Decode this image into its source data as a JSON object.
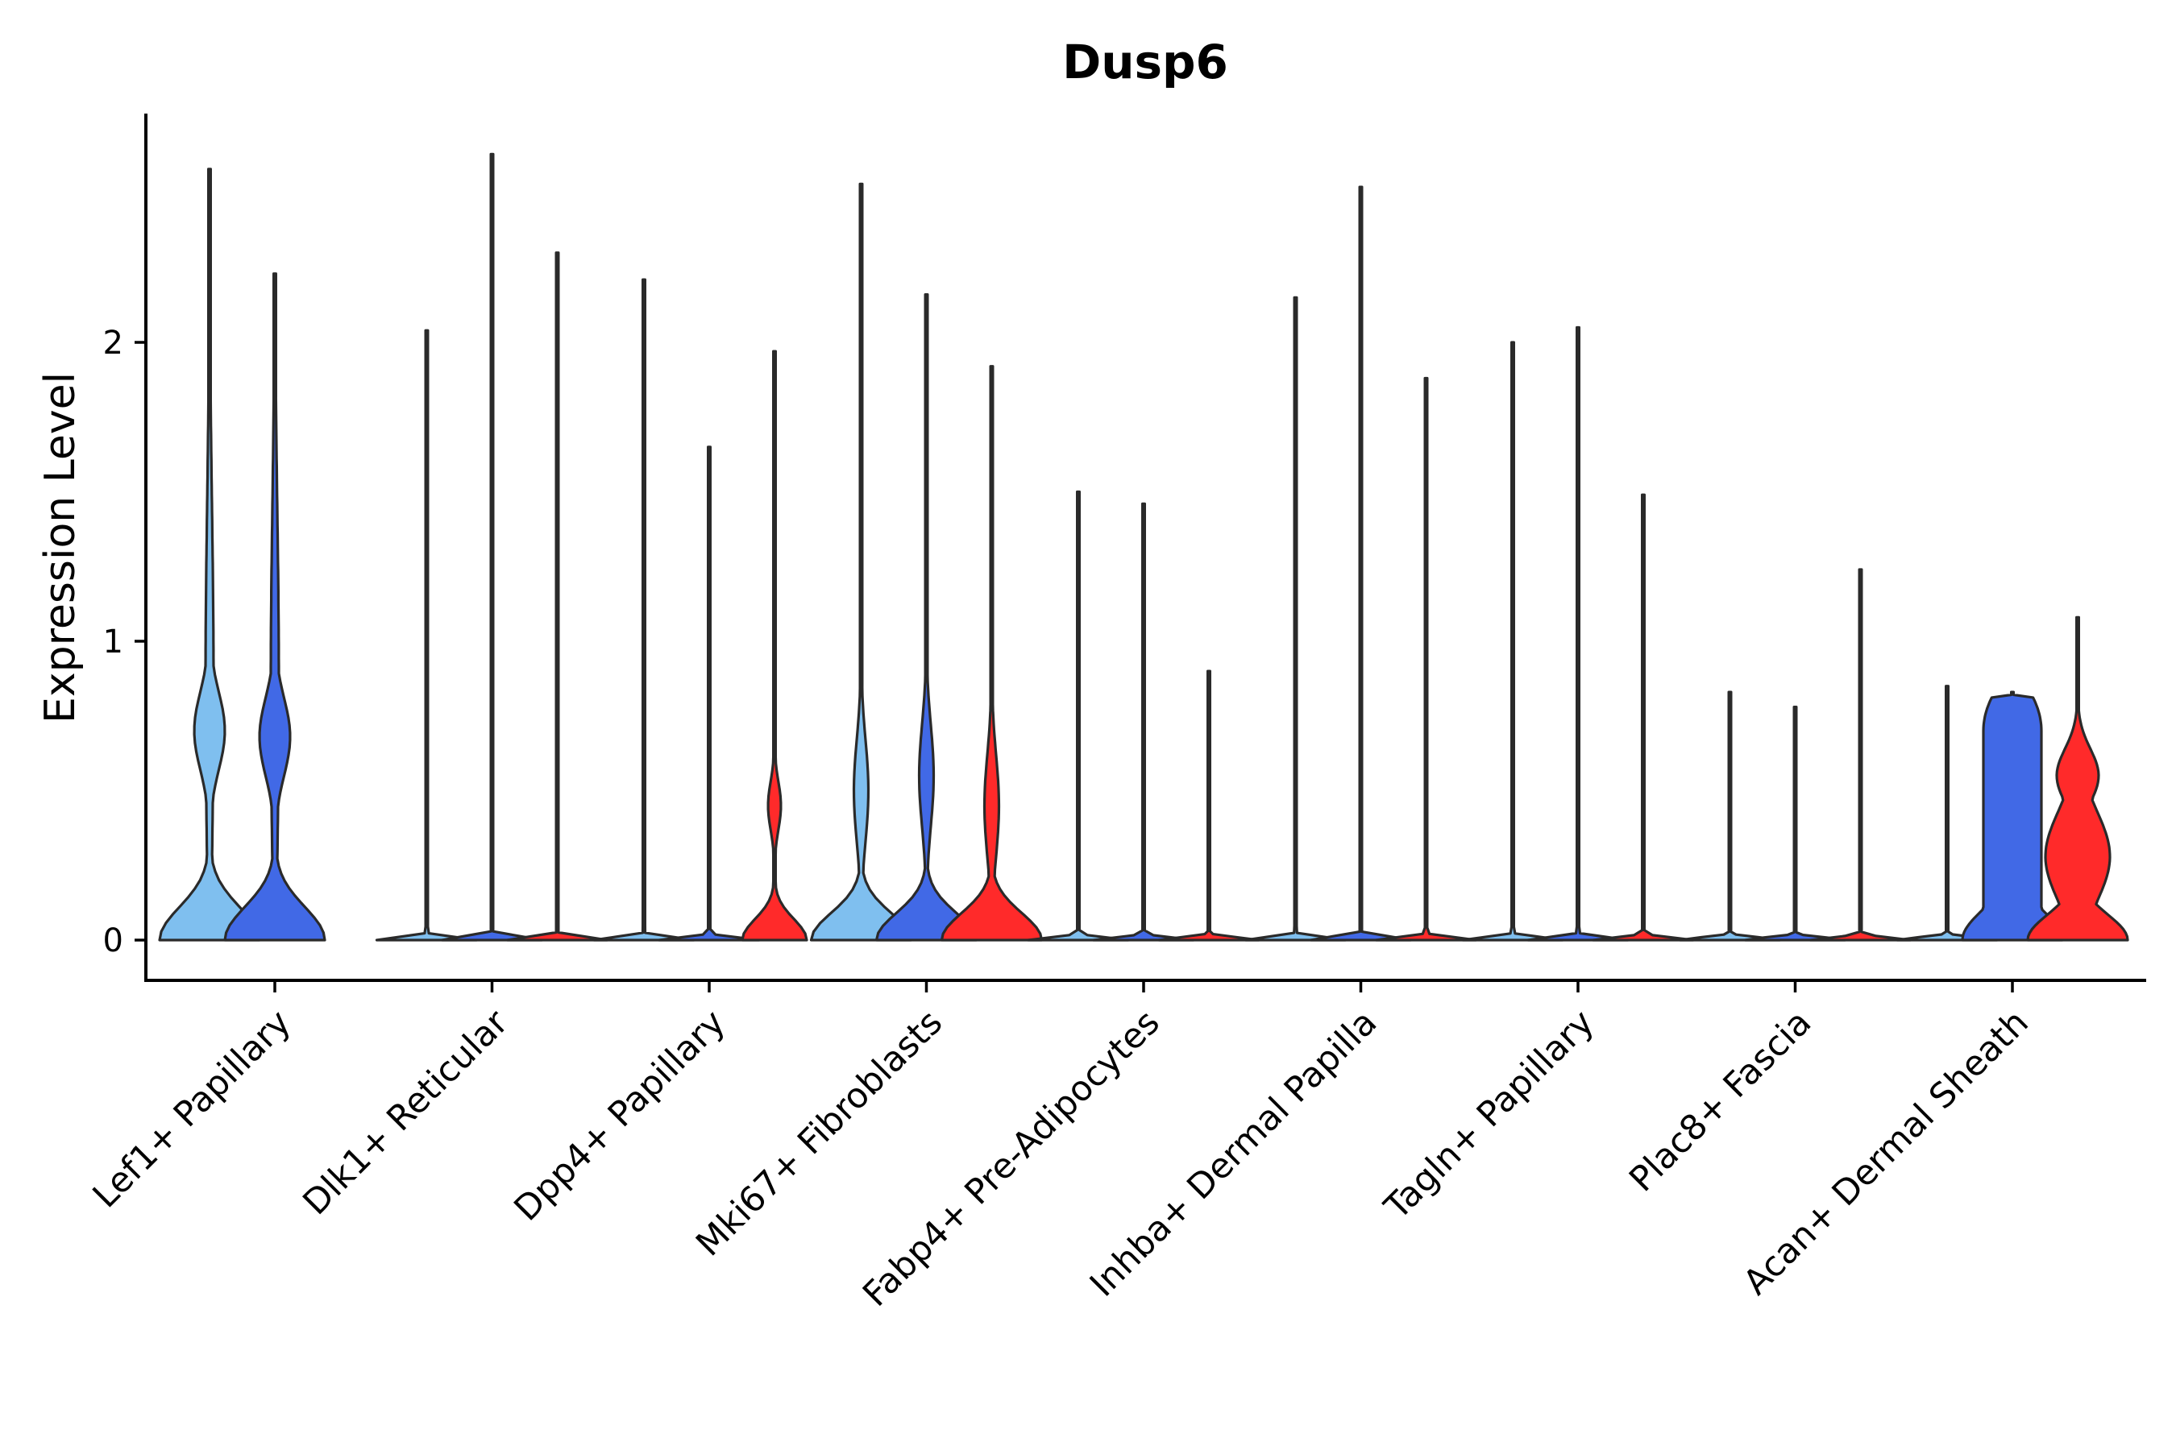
{
  "chart_data": {
    "type": "violin",
    "title": "Dusp6",
    "xlabel": "",
    "ylabel": "Expression Level",
    "ylim": [
      -0.13,
      2.75
    ],
    "yticks": [
      "0",
      "1",
      "2"
    ],
    "grid": false,
    "legend": "none",
    "categories": [
      "Lef1+ Papillary",
      "Dlk1+ Reticular",
      "Dpp4+ Papillary",
      "Mki67+ Fibroblasts",
      "Fabp4+ Pre-Adipocytes",
      "Inhba+ Dermal Papilla",
      "Tagln+ Papillary",
      "Plac8+ Fascia",
      "Acan+ Dermal Sheath"
    ],
    "violins": [
      {
        "category": 0,
        "slot": 0,
        "color": "#7fbfef",
        "max": 2.58,
        "profile": "lowhump",
        "hump": 0.7
      },
      {
        "category": 0,
        "slot": 1,
        "color": "#4169e6",
        "max": 2.23,
        "profile": "lowhump",
        "hump": 0.68
      },
      {
        "category": 1,
        "slot": 0,
        "color": "#7fbfef",
        "max": 2.04,
        "profile": "flat"
      },
      {
        "category": 1,
        "slot": 1,
        "color": "#4169e6",
        "max": 2.63,
        "profile": "flat"
      },
      {
        "category": 1,
        "slot": 2,
        "color": "#ff2a2a",
        "max": 2.3,
        "profile": "flat"
      },
      {
        "category": 2,
        "slot": 0,
        "color": "#7fbfef",
        "max": 2.21,
        "profile": "flat"
      },
      {
        "category": 2,
        "slot": 1,
        "color": "#4169e6",
        "max": 1.65,
        "profile": "flat"
      },
      {
        "category": 2,
        "slot": 2,
        "color": "#ff2a2a",
        "max": 1.97,
        "profile": "small",
        "hump": 0.45
      },
      {
        "category": 3,
        "slot": 0,
        "color": "#7fbfef",
        "max": 2.53,
        "profile": "mid",
        "hump": 0.5
      },
      {
        "category": 3,
        "slot": 1,
        "color": "#4169e6",
        "max": 2.16,
        "profile": "mid",
        "hump": 0.55
      },
      {
        "category": 3,
        "slot": 2,
        "color": "#ff2a2a",
        "max": 1.92,
        "profile": "mid",
        "hump": 0.45
      },
      {
        "category": 4,
        "slot": 0,
        "color": "#7fbfef",
        "max": 1.5,
        "profile": "flat"
      },
      {
        "category": 4,
        "slot": 1,
        "color": "#4169e6",
        "max": 1.46,
        "profile": "flat"
      },
      {
        "category": 4,
        "slot": 2,
        "color": "#ff2a2a",
        "max": 0.9,
        "profile": "flat"
      },
      {
        "category": 5,
        "slot": 0,
        "color": "#7fbfef",
        "max": 2.15,
        "profile": "flat"
      },
      {
        "category": 5,
        "slot": 1,
        "color": "#4169e6",
        "max": 2.52,
        "profile": "flat"
      },
      {
        "category": 5,
        "slot": 2,
        "color": "#ff2a2a",
        "max": 1.88,
        "profile": "flat"
      },
      {
        "category": 6,
        "slot": 0,
        "color": "#7fbfef",
        "max": 2.0,
        "profile": "flat"
      },
      {
        "category": 6,
        "slot": 1,
        "color": "#4169e6",
        "max": 2.05,
        "profile": "flat"
      },
      {
        "category": 6,
        "slot": 2,
        "color": "#ff2a2a",
        "max": 1.49,
        "profile": "flat"
      },
      {
        "category": 7,
        "slot": 0,
        "color": "#7fbfef",
        "max": 0.83,
        "profile": "flat"
      },
      {
        "category": 7,
        "slot": 1,
        "color": "#4169e6",
        "max": 0.78,
        "profile": "flat"
      },
      {
        "category": 7,
        "slot": 2,
        "color": "#ff2a2a",
        "max": 1.24,
        "profile": "flat"
      },
      {
        "category": 8,
        "slot": 0,
        "color": "#7fbfef",
        "max": 0.85,
        "profile": "flat"
      },
      {
        "category": 8,
        "slot": 1,
        "color": "#4169e6",
        "max": 0.83,
        "profile": "acan"
      },
      {
        "category": 8,
        "slot": 2,
        "color": "#ff2a2a",
        "max": 1.08,
        "profile": "acanred"
      }
    ]
  }
}
